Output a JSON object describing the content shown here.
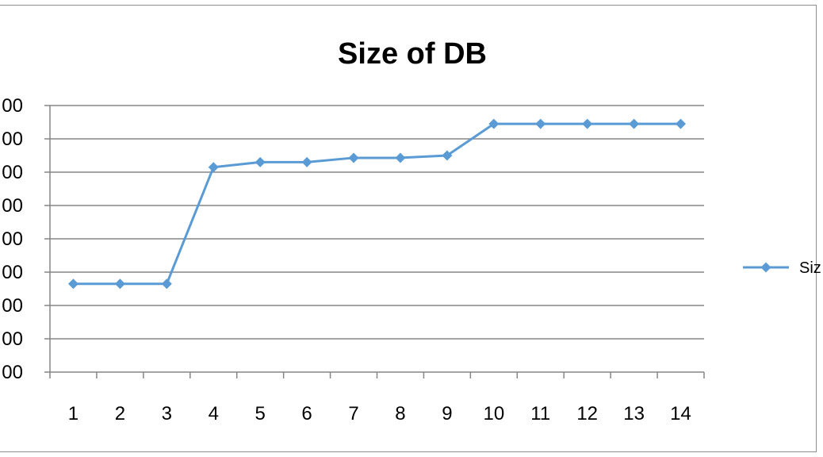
{
  "chart_data": {
    "type": "line",
    "title": "Size of DB",
    "xlabel": "",
    "ylabel": "",
    "categories": [
      "1",
      "2",
      "3",
      "4",
      "5",
      "6",
      "7",
      "8",
      "9",
      "10",
      "11",
      "12",
      "13",
      "14"
    ],
    "series": [
      {
        "name": "Siz",
        "values": [
          2.65,
          2.65,
          2.65,
          6.15,
          6.3,
          6.3,
          6.43,
          6.43,
          6.5,
          7.45,
          7.45,
          7.45,
          7.45,
          7.45
        ]
      }
    ],
    "y_tick_labels": [
      "00",
      "00",
      "00",
      "00",
      "00",
      "00",
      "00",
      "00",
      "00"
    ],
    "ylim": [
      0,
      8
    ],
    "grid": true,
    "legend_position": "right",
    "colors": {
      "series": "#5b9bd5",
      "grid": "#868686",
      "axis": "#868686"
    }
  }
}
